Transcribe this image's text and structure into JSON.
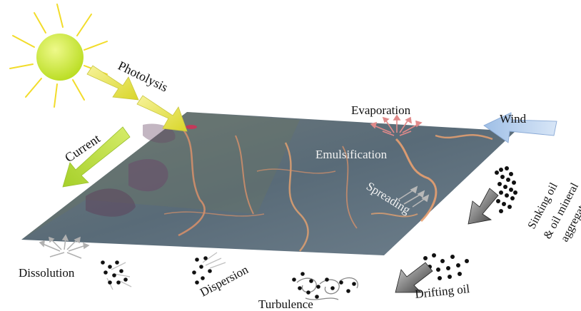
{
  "diagram": {
    "labels": {
      "photolysis": "Photolysis",
      "current": "Current",
      "evaporation": "Evaporation",
      "wind": "Wind",
      "emulsification": "Emulsification",
      "spreading": "Spreading",
      "sinking_line1": "Sinking oil",
      "sinking_line2": "& oil mineral",
      "sinking_line3": "aggregates",
      "dissolution": "Dissolution",
      "dispersion": "Dispersion",
      "turbulence": "Turbulence",
      "drifting": "Drifting oil"
    },
    "colors": {
      "sun": "#d8ee40",
      "sun_rays": "#f2dc2a",
      "photolysis_arrow": "#e8ea58",
      "current_arrow": "#b9dc3c",
      "wind_arrow": "#b7d0ee",
      "evaporation_arrows": "#e08a8a",
      "sea_surface": "#5f6f78",
      "oil_streaks": "#d9916a",
      "dark_arrow": "#444444"
    }
  }
}
